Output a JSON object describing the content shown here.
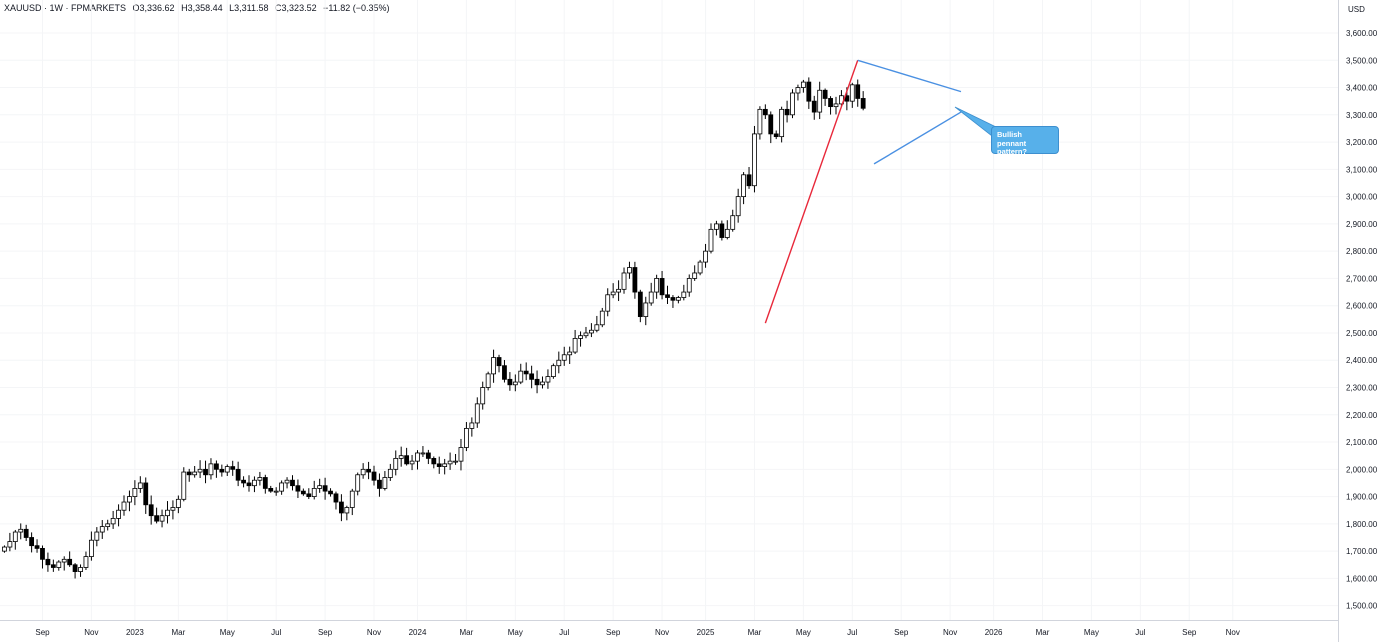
{
  "header": {
    "symbol": "XAUUSD · 1W · FPMARKETS",
    "open": "O3,336.62",
    "high": "H3,358.44",
    "low": "L3,311.58",
    "close": "C3,323.52",
    "change": "−11.82 (−0.35%)"
  },
  "currency_label": "USD",
  "annotation": {
    "text": "Bullish pennant pattern?"
  },
  "colors": {
    "up_body": "#ffffff",
    "down_body": "#000000",
    "wick": "#000000",
    "impulse_line": "#e8283a",
    "pennant_line": "#4a90e2",
    "callout": "#57b0ea"
  },
  "chart_data": {
    "type": "candlestick",
    "title": "",
    "xlabel": "",
    "ylabel": "",
    "ylim": [
      1400,
      3700
    ],
    "yticks": [
      1500,
      1600,
      1700,
      1800,
      1900,
      2000,
      2100,
      2200,
      2300,
      2400,
      2500,
      2600,
      2700,
      2800,
      2900,
      3000,
      3100,
      3200,
      3300,
      3400,
      3500,
      3600
    ],
    "ytick_labels": [
      "1,500.00",
      "1,600.00",
      "1,700.00",
      "1,800.00",
      "1,900.00",
      "2,000.00",
      "2,100.00",
      "2,200.00",
      "2,300.00",
      "2,400.00",
      "2,500.00",
      "2,600.00",
      "2,700.00",
      "2,800.00",
      "2,900.00",
      "3,000.00",
      "3,100.00",
      "3,200.00",
      "3,300.00",
      "3,400.00",
      "3,500.00",
      "3,600.00"
    ],
    "xticks": [
      {
        "label": "Sep",
        "week": 8
      },
      {
        "label": "Nov",
        "week": 17
      },
      {
        "label": "2023",
        "week": 25
      },
      {
        "label": "Mar",
        "week": 33
      },
      {
        "label": "May",
        "week": 42
      },
      {
        "label": "Jul",
        "week": 51
      },
      {
        "label": "Sep",
        "week": 60
      },
      {
        "label": "Nov",
        "week": 69
      },
      {
        "label": "2024",
        "week": 77
      },
      {
        "label": "Mar",
        "week": 86
      },
      {
        "label": "May",
        "week": 95
      },
      {
        "label": "Jul",
        "week": 104
      },
      {
        "label": "Sep",
        "week": 113
      },
      {
        "label": "Nov",
        "week": 122
      },
      {
        "label": "2025",
        "week": 130
      },
      {
        "label": "Mar",
        "week": 139
      },
      {
        "label": "May",
        "week": 148
      },
      {
        "label": "Jul",
        "week": 157
      },
      {
        "label": "Sep",
        "week": 166
      },
      {
        "label": "Nov",
        "week": 175
      },
      {
        "label": "2026",
        "week": 183
      },
      {
        "label": "Mar",
        "week": 192
      },
      {
        "label": "May",
        "week": 201
      },
      {
        "label": "Jul",
        "week": 210
      },
      {
        "label": "Sep",
        "week": 219
      },
      {
        "label": "Nov",
        "week": 227
      }
    ],
    "closes": [
      1715,
      1735,
      1770,
      1780,
      1750,
      1720,
      1710,
      1670,
      1650,
      1640,
      1660,
      1670,
      1650,
      1625,
      1640,
      1680,
      1740,
      1770,
      1790,
      1800,
      1820,
      1850,
      1880,
      1900,
      1930,
      1950,
      1870,
      1830,
      1810,
      1830,
      1850,
      1860,
      1890,
      1990,
      1980,
      1990,
      2000,
      1980,
      2020,
      2000,
      1990,
      2010,
      2000,
      1960,
      1950,
      1940,
      1960,
      1970,
      1930,
      1920,
      1920,
      1950,
      1960,
      1940,
      1920,
      1910,
      1900,
      1930,
      1940,
      1920,
      1910,
      1880,
      1840,
      1860,
      1920,
      1980,
      2000,
      1990,
      1960,
      1930,
      1970,
      2000,
      2040,
      2050,
      2020,
      2030,
      2060,
      2060,
      2040,
      2020,
      2010,
      2020,
      2030,
      2030,
      2080,
      2150,
      2170,
      2240,
      2300,
      2350,
      2410,
      2380,
      2330,
      2310,
      2320,
      2360,
      2350,
      2330,
      2310,
      2320,
      2340,
      2380,
      2400,
      2420,
      2430,
      2480,
      2490,
      2500,
      2510,
      2530,
      2580,
      2640,
      2650,
      2660,
      2720,
      2740,
      2650,
      2560,
      2610,
      2650,
      2700,
      2640,
      2630,
      2620,
      2630,
      2650,
      2700,
      2720,
      2760,
      2800,
      2880,
      2900,
      2850,
      2880,
      2930,
      3000,
      3080,
      3040,
      3230,
      3320,
      3300,
      3230,
      3220,
      3320,
      3300,
      3380,
      3400,
      3420,
      3350,
      3310,
      3390,
      3360,
      3330,
      3340,
      3370,
      3350,
      3410,
      3360,
      3324
    ],
    "impulse_line": {
      "start": {
        "week": 141,
        "price": 2536
      },
      "end": {
        "week": 158,
        "price": 3500
      }
    },
    "pennant_upper": {
      "start": {
        "week": 158,
        "price": 3500
      },
      "end": {
        "week": 177,
        "price": 3385
      }
    },
    "pennant_lower": {
      "start": {
        "week": 161,
        "price": 3120
      },
      "end": {
        "week": 177,
        "price": 3310
      }
    }
  }
}
